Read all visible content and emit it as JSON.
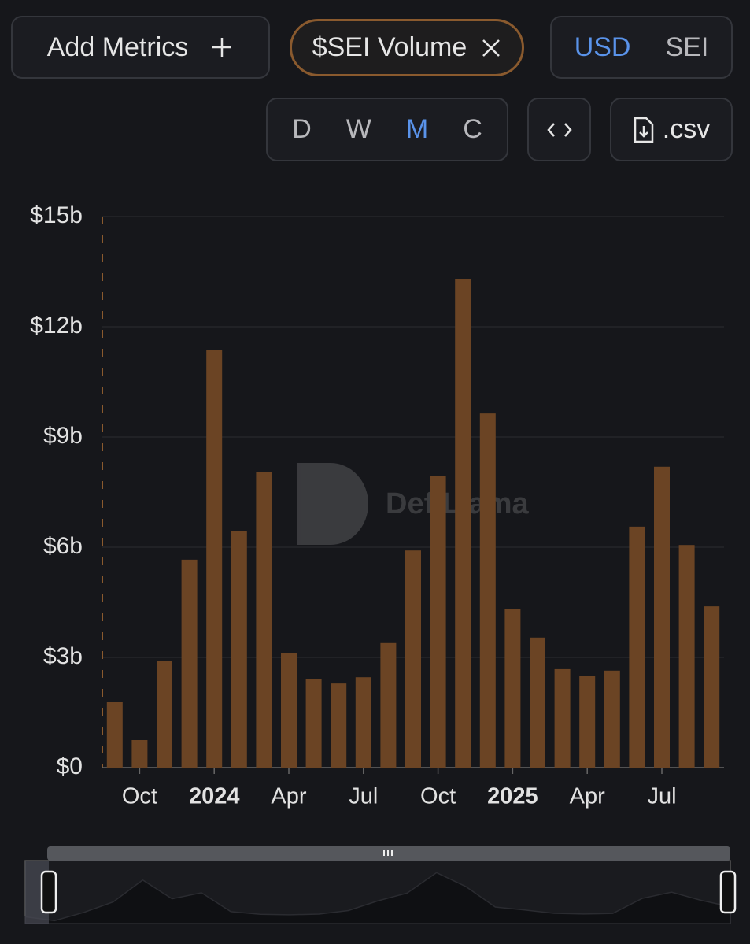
{
  "controls": {
    "add_metrics": "Add Metrics",
    "metric": "$SEI Volume",
    "currency": [
      "USD",
      "SEI"
    ],
    "active_currency": "USD",
    "periods": [
      "D",
      "W",
      "M",
      "C"
    ],
    "active_period": "M",
    "csv": ".csv"
  },
  "chart_data": {
    "type": "bar",
    "watermark": "DefiLlama",
    "categories": [
      null,
      "Oct",
      null,
      null,
      "2024",
      null,
      null,
      "Apr",
      null,
      null,
      "Jul",
      null,
      null,
      "Oct",
      null,
      null,
      "2025",
      null,
      null,
      "Apr",
      null,
      null,
      "Jul",
      null,
      null
    ],
    "values": [
      1.78,
      0.75,
      2.91,
      5.66,
      11.36,
      6.45,
      8.04,
      3.11,
      2.42,
      2.29,
      2.46,
      3.39,
      5.91,
      7.95,
      13.29,
      9.64,
      4.31,
      3.54,
      2.68,
      2.49,
      2.64,
      6.56,
      8.19,
      6.06,
      4.39
    ],
    "color": "#6b4424",
    "ylim": [
      0,
      15
    ],
    "yticks": [
      {
        "value": 0,
        "label": "$0"
      },
      {
        "value": 3,
        "label": "$3b"
      },
      {
        "value": 6,
        "label": "$6b"
      },
      {
        "value": 9,
        "label": "$9b"
      },
      {
        "value": 12,
        "label": "$12b"
      },
      {
        "value": 15,
        "label": "$15b"
      }
    ],
    "grid": true
  }
}
